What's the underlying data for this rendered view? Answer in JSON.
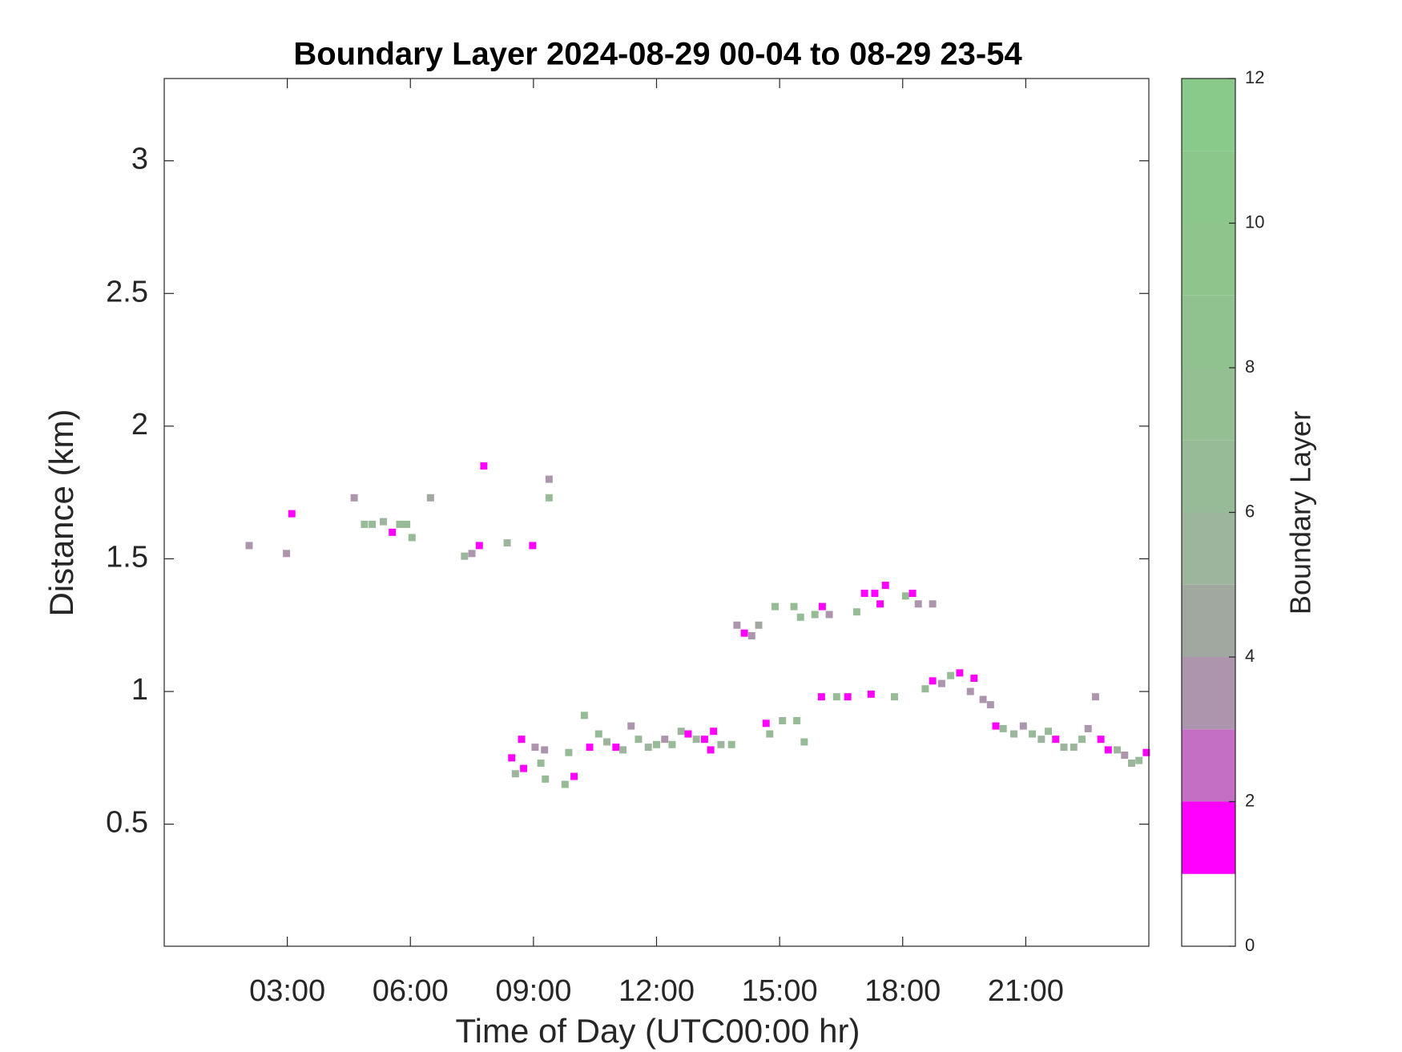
{
  "chart_data": {
    "type": "heatmap",
    "title": "Boundary Layer 2024-08-29 00-04 to 08-29 23-54",
    "xlabel": "Time of Day (UTC00:00 hr)",
    "ylabel": "Distance (km)",
    "xlim": [
      0,
      24
    ],
    "xticks": [
      {
        "value": 3,
        "label": "03:00"
      },
      {
        "value": 6,
        "label": "06:00"
      },
      {
        "value": 9,
        "label": "09:00"
      },
      {
        "value": 12,
        "label": "12:00"
      },
      {
        "value": 15,
        "label": "15:00"
      },
      {
        "value": 18,
        "label": "18:00"
      },
      {
        "value": 21,
        "label": "21:00"
      }
    ],
    "ylim": [
      0.04,
      3.31
    ],
    "yticks": [
      0.5,
      1,
      1.5,
      2,
      2.5,
      3
    ],
    "x": [
      2.07,
      3.11,
      2.98,
      4.63,
      4.88,
      5.07,
      5.34,
      5.56,
      5.74,
      5.91,
      6.04,
      6.49,
      7.32,
      7.5,
      7.68,
      7.79,
      8.36,
      8.98,
      9.38,
      9.38,
      8.47,
      8.56,
      8.71,
      8.76,
      9.04,
      9.27,
      9.18,
      9.29,
      9.77,
      9.99,
      9.86,
      10.24,
      10.37,
      10.59,
      10.79,
      11.01,
      11.18,
      11.38,
      11.56,
      11.8,
      12.0,
      12.2,
      12.38,
      12.6,
      12.77,
      12.97,
      13.17,
      13.32,
      13.39,
      13.57,
      13.83,
      13.96,
      14.14,
      14.32,
      14.49,
      14.67,
      14.76,
      14.89,
      15.07,
      15.35,
      15.42,
      15.51,
      15.6,
      15.86,
      16.02,
      16.04,
      16.21,
      16.39,
      16.66,
      16.88,
      17.07,
      17.23,
      17.32,
      17.45,
      17.58,
      17.8,
      18.07,
      18.24,
      18.38,
      18.73,
      18.55,
      18.73,
      18.95,
      19.17,
      19.39,
      19.74,
      19.65,
      19.96,
      20.14,
      20.27,
      20.45,
      20.71,
      20.94,
      21.16,
      21.38,
      21.55,
      21.73,
      21.93,
      22.17,
      22.37,
      22.52,
      22.7,
      22.83,
      23.01,
      23.23,
      23.41,
      23.58,
      23.76,
      23.94
    ],
    "y": [
      1.55,
      1.67,
      1.52,
      1.73,
      1.63,
      1.63,
      1.64,
      1.6,
      1.63,
      1.63,
      1.58,
      1.73,
      1.51,
      1.52,
      1.55,
      1.85,
      1.56,
      1.55,
      1.8,
      1.73,
      0.75,
      0.69,
      0.82,
      0.71,
      0.79,
      0.78,
      0.73,
      0.67,
      0.65,
      0.68,
      0.77,
      0.91,
      0.79,
      0.84,
      0.81,
      0.79,
      0.78,
      0.87,
      0.82,
      0.79,
      0.8,
      0.82,
      0.8,
      0.85,
      0.84,
      0.82,
      0.82,
      0.78,
      0.85,
      0.8,
      0.8,
      1.25,
      1.22,
      1.21,
      1.25,
      0.88,
      0.84,
      1.32,
      0.89,
      1.32,
      0.89,
      1.28,
      0.81,
      1.29,
      0.98,
      1.32,
      1.29,
      0.98,
      0.98,
      1.3,
      1.37,
      0.99,
      1.37,
      1.33,
      1.4,
      0.98,
      1.36,
      1.37,
      1.33,
      1.33,
      1.01,
      1.04,
      1.03,
      1.06,
      1.07,
      1.05,
      1.0,
      0.97,
      0.95,
      0.87,
      0.86,
      0.84,
      0.87,
      0.84,
      0.82,
      0.85,
      0.82,
      0.79,
      0.79,
      0.82,
      0.86,
      0.98,
      0.82,
      0.78,
      0.78,
      0.76,
      0.73,
      0.74,
      0.77
    ],
    "values": [
      3,
      1,
      3,
      3,
      6,
      6,
      5,
      1,
      6,
      6,
      6,
      4,
      5,
      3,
      1,
      1,
      5,
      1,
      3,
      6,
      1,
      5,
      1,
      1,
      3,
      3,
      6,
      6,
      6,
      1,
      6,
      6,
      1,
      6,
      5,
      1,
      5,
      3,
      6,
      5,
      6,
      3,
      6,
      5,
      1,
      5,
      1,
      1,
      1,
      5,
      6,
      3,
      1,
      3,
      4,
      1,
      6,
      6,
      6,
      6,
      6,
      6,
      6,
      6,
      1,
      1,
      3,
      6,
      1,
      6,
      1,
      1,
      1,
      1,
      1,
      6,
      6,
      1,
      3,
      3,
      6,
      1,
      3,
      6,
      1,
      1,
      3,
      3,
      3,
      1,
      6,
      5,
      3,
      6,
      5,
      6,
      1,
      5,
      5,
      6,
      3,
      3,
      1,
      1,
      5,
      3,
      5,
      6,
      1
    ],
    "colorbar": {
      "label": "Boundary Layer",
      "lim": [
        0,
        12
      ],
      "ticks": [
        0,
        2,
        4,
        6,
        8,
        10,
        12
      ],
      "bounds": [
        0,
        1,
        2,
        3,
        4,
        5,
        6,
        7,
        8,
        9,
        10,
        11,
        12
      ],
      "colors": [
        "#ffffff",
        "#ff00ff",
        "#c46ec4",
        "#ad95ad",
        "#a0a8a0",
        "#9cb59c",
        "#96bb96",
        "#93bf93",
        "#90c290",
        "#8dc58d",
        "#8bc78b",
        "#89c989"
      ]
    }
  }
}
